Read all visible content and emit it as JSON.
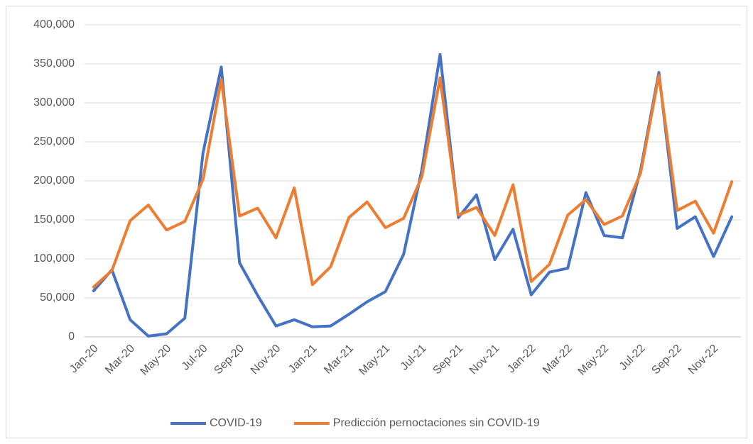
{
  "chart_data": {
    "type": "line",
    "categories": [
      "Jan-20",
      null,
      "Mar-20",
      null,
      "May-20",
      null,
      "Jul-20",
      null,
      "Sep-20",
      null,
      "Nov-20",
      null,
      "Jan-21",
      null,
      "Mar-21",
      null,
      "May-21",
      null,
      "Jul-21",
      null,
      "Sep-21",
      null,
      "Nov-21",
      null,
      "Jan-22",
      null,
      "Mar-22",
      null,
      "May-22",
      null,
      "Jul-22",
      null,
      "Sep-22",
      null,
      "Nov-22",
      null
    ],
    "series": [
      {
        "name": "COVID-19",
        "color": "#4472c4",
        "values": [
          59000,
          86000,
          22000,
          1000,
          4000,
          24000,
          236000,
          346000,
          95000,
          53000,
          14000,
          22000,
          13000,
          14000,
          29000,
          45000,
          58000,
          106000,
          214000,
          362000,
          153000,
          182000,
          99000,
          138000,
          54000,
          83000,
          88000,
          185000,
          130000,
          127000,
          214000,
          339000,
          139000,
          154000,
          103000,
          154000
        ]
      },
      {
        "name": "Predicción pernoctaciones sin COVID-19",
        "color": "#ed7d31",
        "values": [
          64000,
          85000,
          149000,
          169000,
          137000,
          148000,
          202000,
          330000,
          155000,
          165000,
          127000,
          191000,
          67000,
          90000,
          153000,
          173000,
          140000,
          152000,
          205000,
          332000,
          156000,
          166000,
          130000,
          195000,
          71000,
          93000,
          156000,
          176000,
          144000,
          155000,
          210000,
          335000,
          162000,
          174000,
          133000,
          199000
        ]
      }
    ],
    "ylim": [
      0,
      400000
    ],
    "yticks": [
      0,
      {
        "value": 50000,
        "label": "50,000"
      },
      {
        "value": 100000,
        "label": "100,000"
      },
      {
        "value": 150000,
        "label": "150,000"
      },
      {
        "value": 200000,
        "label": "200,000"
      },
      {
        "value": 250000,
        "label": "250,000"
      },
      {
        "value": 300000,
        "label": "300,000"
      },
      {
        "value": 350000,
        "label": "350,000"
      },
      {
        "value": 400000,
        "label": "400,000"
      }
    ],
    "grid": true,
    "legend": "bottom"
  }
}
